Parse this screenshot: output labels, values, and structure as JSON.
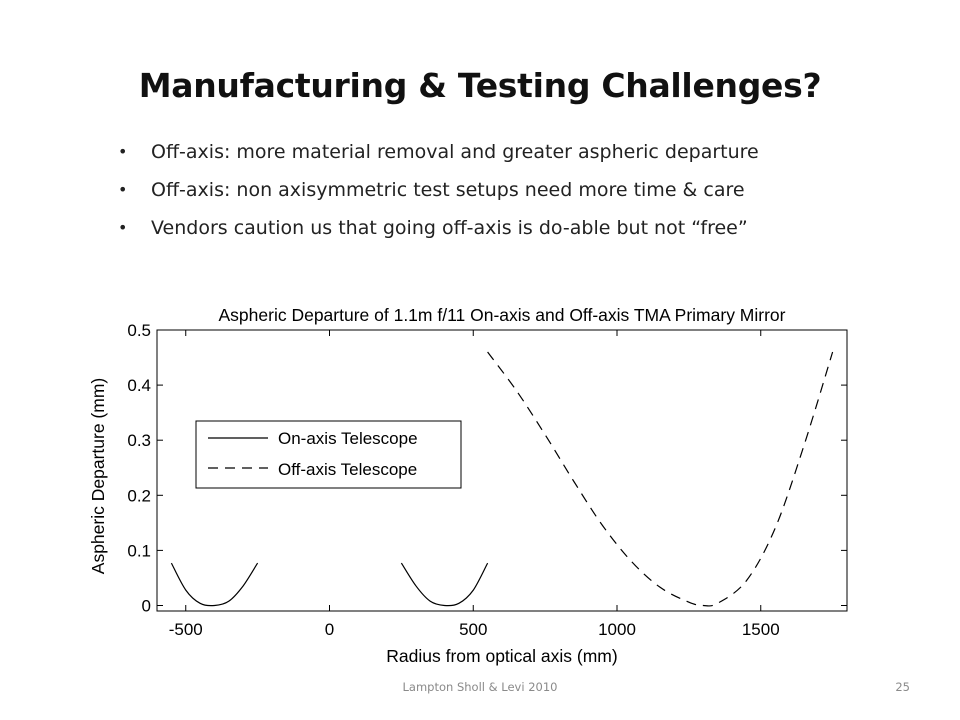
{
  "slide": {
    "title": "Manufacturing  & Testing Challenges?",
    "bullets": [
      "Off-axis: more material removal and greater aspheric departure",
      "Off-axis: non axisymmetric test setups need more time & care",
      "Vendors caution us that going off-axis is do-able but not “free”"
    ],
    "bullet_glyph": "•",
    "footer_text": "Lampton Sholl & Levi 2010",
    "page_number": "25"
  },
  "chart_data": {
    "type": "line",
    "title": "Aspheric Departure of 1.1m f/11 On-axis and Off-axis TMA Primary Mirror",
    "xlabel": "Radius from optical axis (mm)",
    "ylabel": "Aspheric Departure (mm)",
    "xlim": [
      -600,
      1800
    ],
    "ylim": [
      -0.01,
      0.5
    ],
    "xticks": [
      -500,
      0,
      500,
      1000,
      1500
    ],
    "xtick_labels": [
      "-500",
      "0",
      "500",
      "1000",
      "1500"
    ],
    "yticks": [
      0,
      0.1,
      0.2,
      0.3,
      0.4,
      0.5
    ],
    "ytick_labels": [
      "0",
      "0.1",
      "0.2",
      "0.3",
      "0.4",
      "0.5"
    ],
    "grid": false,
    "legend_position": "upper-left",
    "series": [
      {
        "name": "On-axis Telescope",
        "style": "solid",
        "color": "#000000",
        "segments": [
          [
            [
              -550,
              0.077
            ],
            [
              -500,
              0.028
            ],
            [
              -450,
              0.004
            ],
            [
              -400,
              0.0
            ],
            [
              -350,
              0.008
            ],
            [
              -300,
              0.036
            ],
            [
              -250,
              0.077
            ]
          ],
          [
            [
              250,
              0.077
            ],
            [
              300,
              0.036
            ],
            [
              350,
              0.008
            ],
            [
              400,
              0.0
            ],
            [
              450,
              0.004
            ],
            [
              500,
              0.028
            ],
            [
              550,
              0.077
            ]
          ]
        ]
      },
      {
        "name": "Off-axis Telescope",
        "style": "dashed",
        "color": "#000000",
        "segments": [
          [
            [
              550,
              0.46
            ],
            [
              650,
              0.39
            ],
            [
              750,
              0.31
            ],
            [
              850,
              0.225
            ],
            [
              950,
              0.145
            ],
            [
              1050,
              0.08
            ],
            [
              1150,
              0.033
            ],
            [
              1250,
              0.006
            ],
            [
              1300,
              0.0
            ],
            [
              1350,
              0.004
            ],
            [
              1450,
              0.045
            ],
            [
              1550,
              0.14
            ],
            [
              1650,
              0.29
            ],
            [
              1750,
              0.46
            ]
          ]
        ]
      }
    ]
  }
}
